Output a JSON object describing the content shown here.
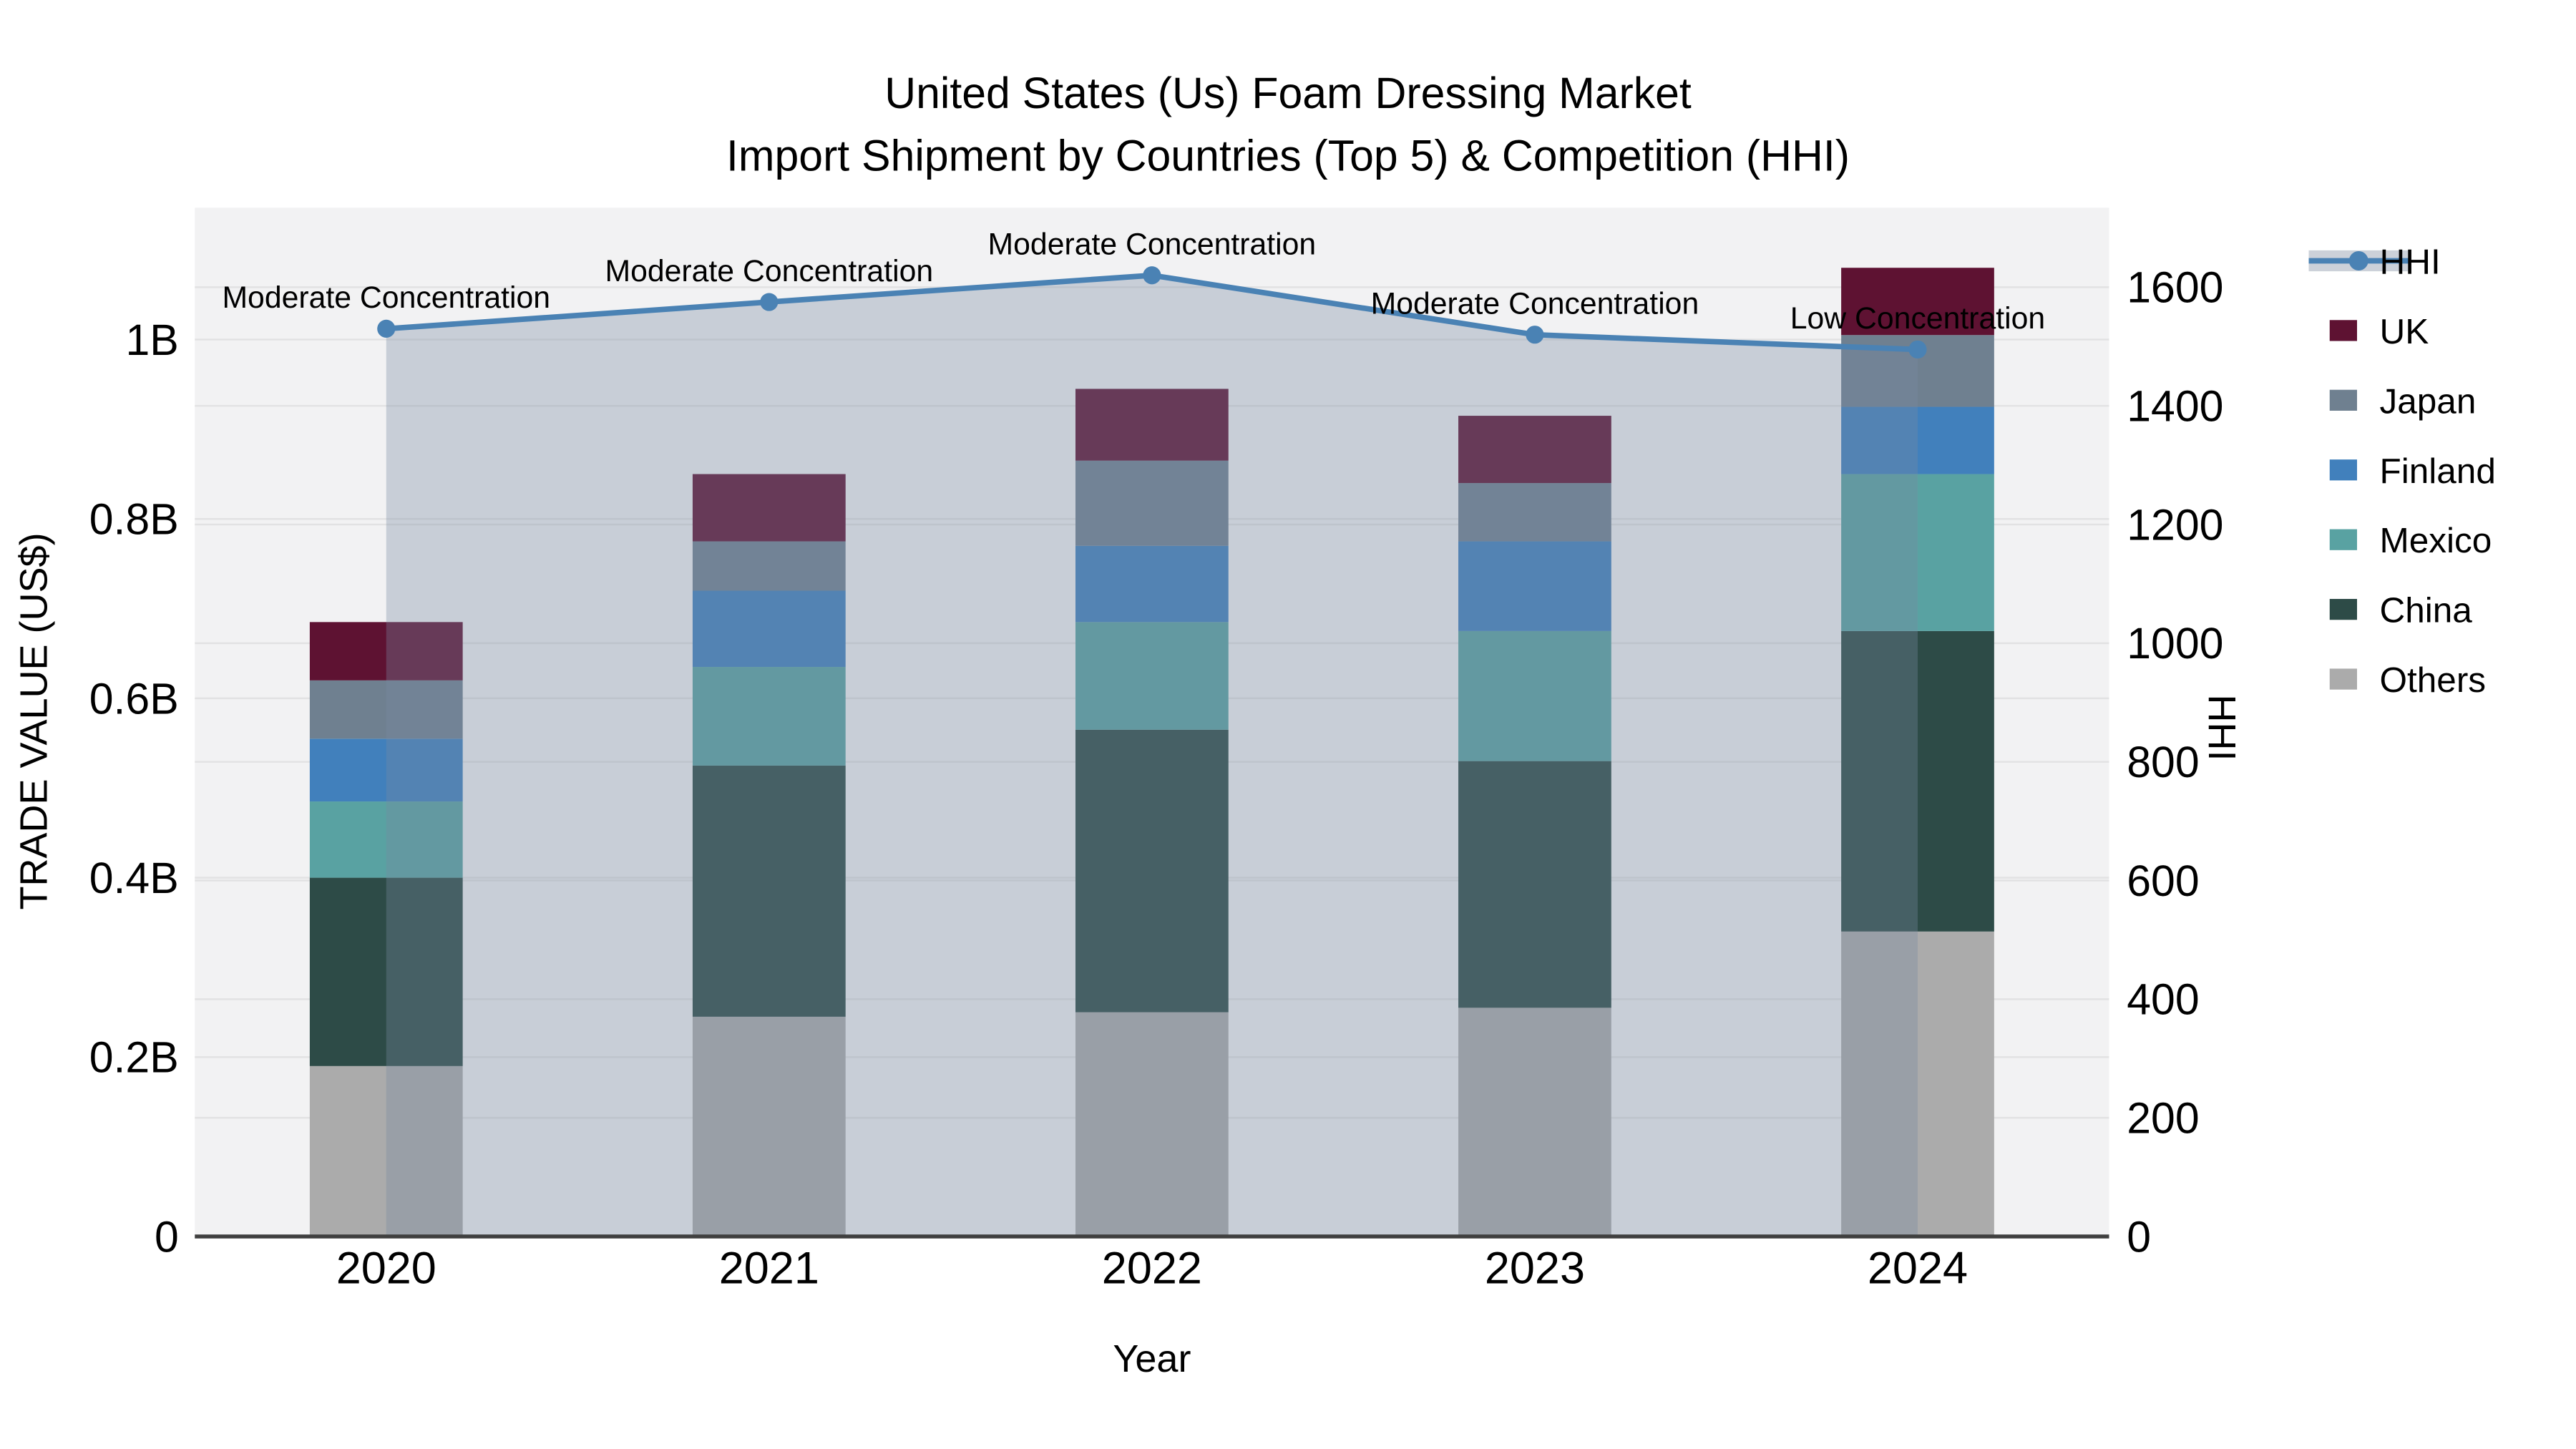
{
  "chart_data": {
    "type": "bar",
    "subtype": "stacked-bars-with-line-overlay",
    "title_lines": [
      "United States (Us) Foam Dressing Market",
      "Import Shipment by Countries (Top 5) & Competition (HHI)"
    ],
    "xlabel": "Year",
    "ylabel_left": "TRADE VALUE (US$)",
    "ylabel_right": "HHI",
    "categories": [
      "2020",
      "2021",
      "2022",
      "2023",
      "2024"
    ],
    "value_unit": "billions of US$",
    "stacked_series": [
      {
        "name": "Others",
        "color": "#ababab",
        "values": [
          0.19,
          0.245,
          0.25,
          0.255,
          0.34
        ]
      },
      {
        "name": "China",
        "color": "#2d4b47",
        "values": [
          0.21,
          0.28,
          0.315,
          0.275,
          0.335
        ]
      },
      {
        "name": "Mexico",
        "color": "#59a2a2",
        "values": [
          0.085,
          0.11,
          0.12,
          0.145,
          0.175
        ]
      },
      {
        "name": "Finland",
        "color": "#4180bc",
        "values": [
          0.07,
          0.085,
          0.085,
          0.1,
          0.075
        ]
      },
      {
        "name": "Japan",
        "color": "#6f8090",
        "values": [
          0.065,
          0.055,
          0.095,
          0.065,
          0.08
        ]
      },
      {
        "name": "UK",
        "color": "#5e1232",
        "values": [
          0.065,
          0.075,
          0.08,
          0.075,
          0.075
        ]
      }
    ],
    "bar_totals": [
      0.685,
      0.85,
      0.945,
      0.915,
      1.08
    ],
    "line_series": {
      "name": "HHI",
      "color": "#4a82b4",
      "fill_color": "rgba(121,137,160,0.34)",
      "legend_band_color": "#ccd1d9",
      "axis": "right",
      "values": [
        1530,
        1575,
        1620,
        1520,
        1495
      ]
    },
    "annotations": [
      "Moderate Concentration",
      "Moderate Concentration",
      "Moderate Concentration",
      "Moderate Concentration",
      "Low Concentration"
    ],
    "axes": {
      "left": {
        "tick_labels": [
          "0",
          "0.2B",
          "0.4B",
          "0.6B",
          "0.8B",
          "1B"
        ],
        "tick_values": [
          0,
          0.2,
          0.4,
          0.6,
          0.8,
          1.0
        ],
        "range": [
          0,
          1.147
        ],
        "grid": true
      },
      "right": {
        "tick_labels": [
          "0",
          "200",
          "400",
          "600",
          "800",
          "1000",
          "1200",
          "1400",
          "1600"
        ],
        "tick_values": [
          0,
          200,
          400,
          600,
          800,
          1000,
          1200,
          1400,
          1600
        ],
        "range": [
          0,
          1734
        ],
        "grid": true
      }
    },
    "legend": {
      "position": "right-outside-top",
      "items": [
        "HHI",
        "UK",
        "Japan",
        "Finland",
        "Mexico",
        "China",
        "Others"
      ]
    },
    "style": {
      "plot_bg": "#f2f2f3",
      "grid": "#e2e2e3",
      "axis_line": "#3f3f3f",
      "text": "#000000",
      "figure_bg": "#ffffff"
    }
  }
}
